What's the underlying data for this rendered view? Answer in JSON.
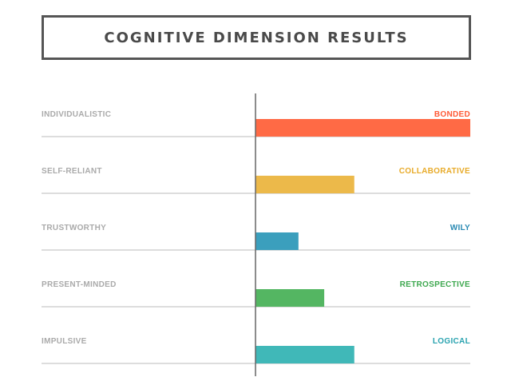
{
  "title": "COGNITIVE DIMENSION RESULTS",
  "chart_data": {
    "type": "bar",
    "orientation": "horizontal",
    "grid": false,
    "xlim": [
      0,
      1
    ],
    "rows": [
      {
        "left_label": "INDIVIDUALISTIC",
        "right_label": "BONDED",
        "value": 1.0,
        "color": "#ff6a45"
      },
      {
        "left_label": "SELF-RELIANT",
        "right_label": "COLLABORATIVE",
        "value": 0.46,
        "color": "#ecb94a"
      },
      {
        "left_label": "TRUSTWORTHY",
        "right_label": "WILY",
        "value": 0.2,
        "color": "#3b9fbd"
      },
      {
        "left_label": "PRESENT-MINDED",
        "right_label": "RETROSPECTIVE",
        "value": 0.32,
        "color": "#54b662"
      },
      {
        "left_label": "IMPULSIVE",
        "right_label": "LOGICAL",
        "value": 0.46,
        "color": "#40b8b8"
      }
    ],
    "left_label_color": "#aaaaaa",
    "right_label_colors": [
      "#ff5a36",
      "#e8ab2a",
      "#2a8ab3",
      "#3ea84f",
      "#2aa3b0"
    ],
    "track_color": "#dddddd",
    "axis_color": "#666666"
  }
}
